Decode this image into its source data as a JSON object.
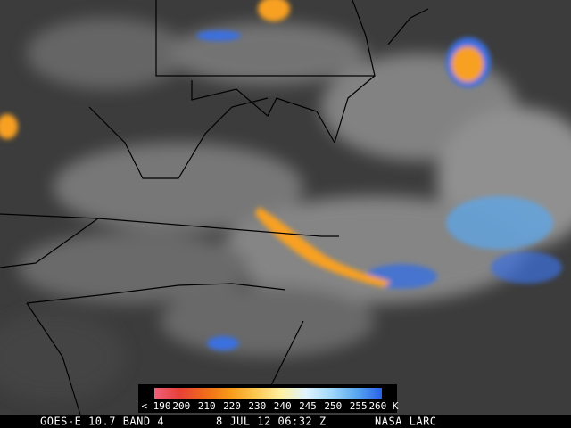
{
  "colorbar": {
    "items": [
      {
        "label": "< 190",
        "color": "#f0607a"
      },
      {
        "label": "200",
        "color": "#e8403a"
      },
      {
        "label": "210",
        "color": "#f06a18"
      },
      {
        "label": "220",
        "color": "#f89a18"
      },
      {
        "label": "230",
        "color": "#fcc850"
      },
      {
        "label": "240",
        "color": "#fff0a0"
      },
      {
        "label": "245",
        "color": "#e0f4ff"
      },
      {
        "label": "250",
        "color": "#a0d8f8"
      },
      {
        "label": "255",
        "color": "#58a8f0"
      },
      {
        "label": "260 K",
        "color": "#2a60e8"
      }
    ]
  },
  "footer": {
    "satellite": "GOES-E 10.7 BAND 4",
    "time": "8 JUL 12 06:32 Z",
    "source": "NASA LARC"
  }
}
